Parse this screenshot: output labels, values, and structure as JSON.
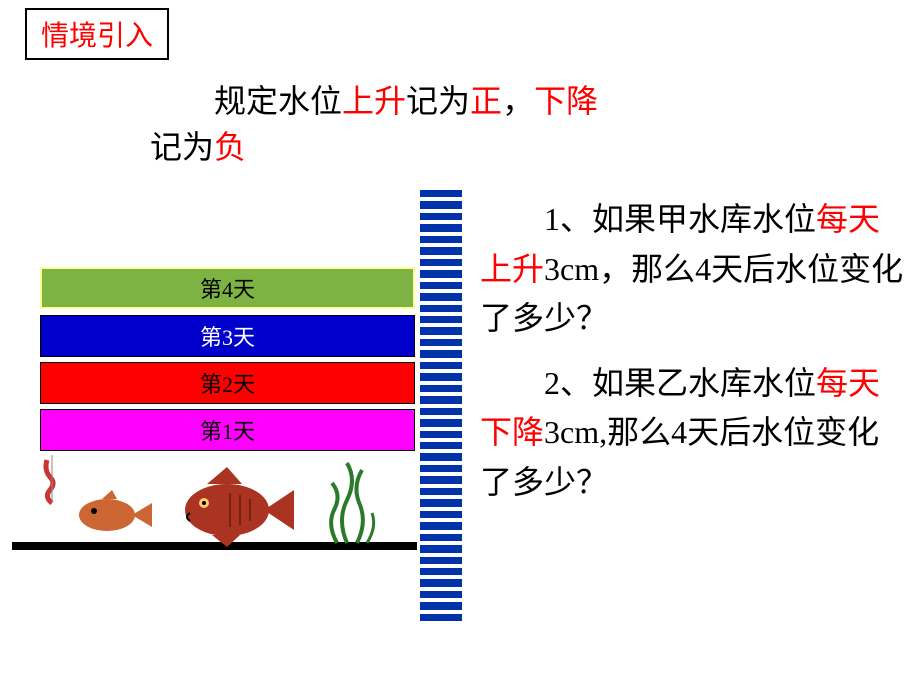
{
  "title": "情境引入",
  "intro": {
    "prefix": "规定水位",
    "up": "上升",
    "mid1": "记为",
    "positive": "正",
    "mid2": "，",
    "down": "下降",
    "suffix_pre": "记为",
    "negative": "负"
  },
  "bars": {
    "day4": "第4天",
    "day3": "第3天",
    "day2": "第2天",
    "day1": "第1天",
    "colors": {
      "day4": "#7cb342",
      "day3": "#0000cc",
      "day2": "#ff0000",
      "day1": "#ff00ff"
    }
  },
  "ruler": {
    "tick_color": "#0033aa",
    "tick_count": 38
  },
  "questions": {
    "q1_pre": "1、如果甲水库水位",
    "q1_hl": "每天上升",
    "q1_post": "3cm，那么4天后水位变化了多少？",
    "q2_pre": "2、如果乙水库水位",
    "q2_hl": "每天下降",
    "q2_post": "3cm,那么4天后水位变化了多少？"
  },
  "styling": {
    "page_bg": "#ffffff",
    "text_color": "#000000",
    "highlight_color": "#ff0000",
    "title_border": "#000000",
    "body_fontsize": 32,
    "title_fontsize": 28,
    "bar_label_fontsize": 22
  }
}
